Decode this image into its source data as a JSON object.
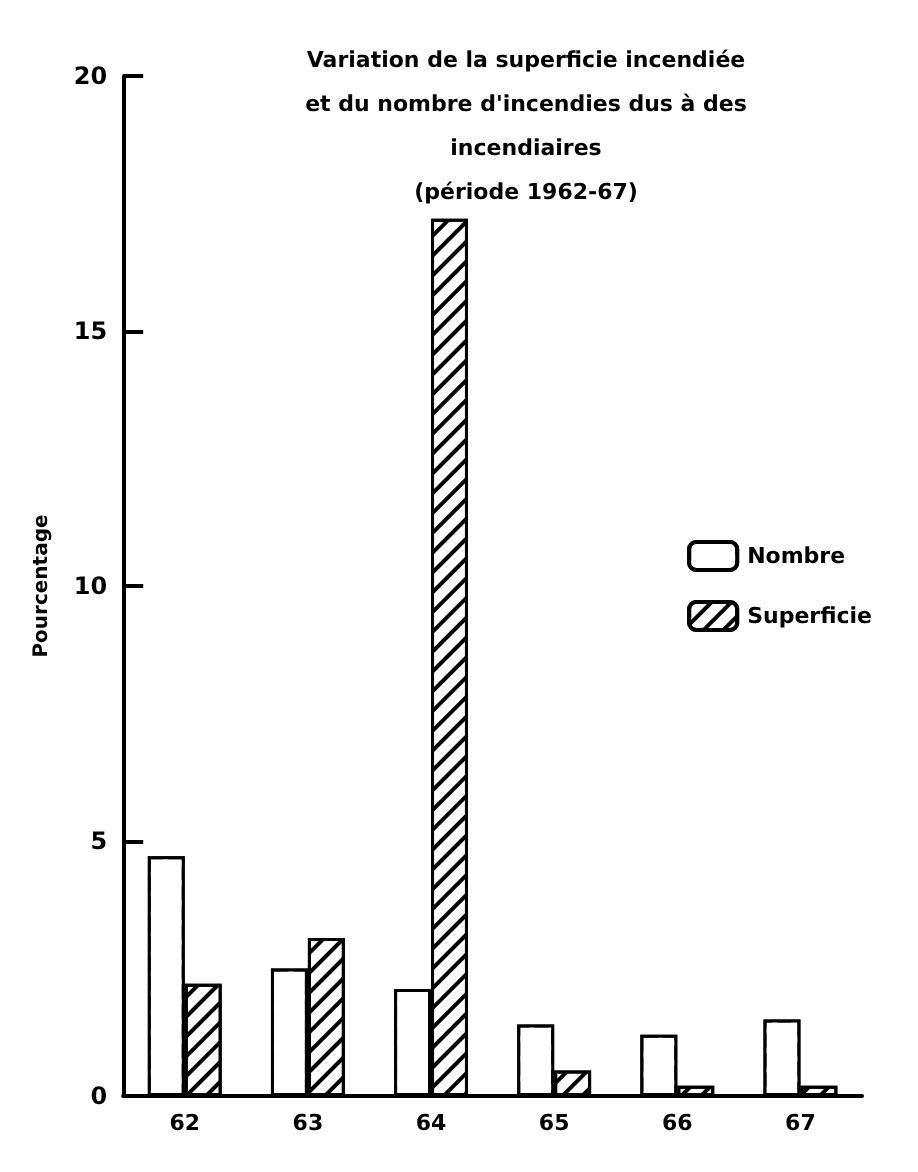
{
  "chart_data": {
    "type": "bar",
    "title": "Variation de la superficie incendiée\net du nombre d'incendies dus à des\nincendiaires\n(période 1962-67)",
    "categories": [
      "62",
      "63",
      "64",
      "65",
      "66",
      "67"
    ],
    "series": [
      {
        "name": "Nombre",
        "color": "#ffffff",
        "values": [
          4.7,
          2.5,
          2.1,
          1.4,
          1.2,
          1.5
        ]
      },
      {
        "name": "Superficie",
        "color": "#000000",
        "values": [
          2.2,
          3.1,
          17.2,
          0.5,
          0.2,
          0.2
        ]
      }
    ],
    "ylabel": "Pourcentage",
    "ylim": [
      0,
      20
    ],
    "yticks": [
      0,
      5,
      10,
      15,
      20
    ],
    "grid": false,
    "legend": "right"
  }
}
